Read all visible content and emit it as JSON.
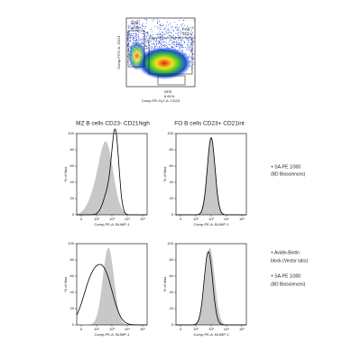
{
  "dot_plot": {
    "y_label": "Comp-FITC-A: CD21",
    "x_label": "Comp-PE-Cy7-A: CD23",
    "gates": [
      {
        "name": "MZB",
        "percent": "10.2%"
      },
      {
        "name": "FOB",
        "percent": "73.1%"
      },
      {
        "name": "NFB",
        "percent": "6.61%"
      }
    ]
  },
  "column_titles": [
    "MZ B cells CD23- CD21high",
    "FO B cells CD23+ CD21int"
  ],
  "histogram_axis": {
    "y_label": "% of Max",
    "x_label": "Comp-PE-A: BLIMP-1",
    "y_ticks": [
      "0",
      "20",
      "40",
      "60",
      "80",
      "100"
    ],
    "x_ticks": [
      "0",
      "10²",
      "10³",
      "10⁴",
      "10⁵"
    ]
  },
  "row_labels": [
    [
      "+ SA-PE 1/300",
      "(BD Biosciences)"
    ],
    [
      "+ Avidin-Biotin",
      "block (Vector labs)",
      "+ SA-PE 1/300",
      "(BD Biosciences)"
    ]
  ]
}
